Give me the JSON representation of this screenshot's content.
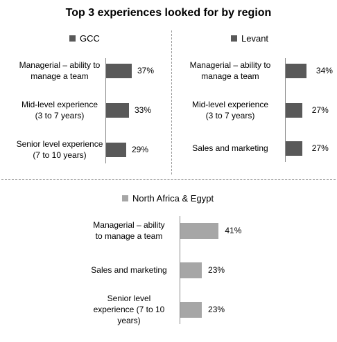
{
  "title": "Top 3 experiences looked for by region",
  "chart_data": [
    {
      "type": "bar",
      "orientation": "horizontal",
      "series": [
        {
          "name": "GCC",
          "color": "#595959"
        }
      ],
      "categories": [
        "Managerial – ability to manage a team",
        "Mid-level experience (3 to 7 years)",
        "Senior level experience (7 to 10 years)"
      ],
      "category_lines": [
        [
          "Managerial – ability to",
          "manage a team"
        ],
        [
          "Mid-level experience",
          "(3 to 7 years)"
        ],
        [
          "Senior level experience",
          "(7 to 10 years)"
        ]
      ],
      "values": [
        37,
        33,
        29
      ],
      "value_labels": [
        "37%",
        "33%",
        "29%"
      ],
      "unit": "%",
      "xlim": [
        0,
        100
      ],
      "legend_position": "top"
    },
    {
      "type": "bar",
      "orientation": "horizontal",
      "series": [
        {
          "name": "Levant",
          "color": "#595959"
        }
      ],
      "categories": [
        "Managerial – ability to manage a team",
        "Mid-level experience (3 to 7 years)",
        "Sales and marketing"
      ],
      "category_lines": [
        [
          "Managerial – ability to",
          "manage a team"
        ],
        [
          "Mid-level experience",
          "(3 to 7 years)"
        ],
        [
          "Sales and marketing"
        ]
      ],
      "values": [
        34,
        27,
        27
      ],
      "value_labels": [
        "34%",
        "27%",
        "27%"
      ],
      "unit": "%",
      "xlim": [
        0,
        100
      ],
      "legend_position": "top"
    },
    {
      "type": "bar",
      "orientation": "horizontal",
      "series": [
        {
          "name": "North Africa & Egypt",
          "color": "#a6a6a6"
        }
      ],
      "categories": [
        "Managerial – ability to manage a team",
        "Sales and marketing",
        "Senior level experience (7 to 10 years)"
      ],
      "category_lines": [
        [
          "Managerial – ability",
          "to manage a team"
        ],
        [
          "Sales and marketing"
        ],
        [
          "Senior level",
          "experience (7 to 10",
          "years)"
        ]
      ],
      "values": [
        41,
        23,
        23
      ],
      "value_labels": [
        "41%",
        "23%",
        "23%"
      ],
      "unit": "%",
      "xlim": [
        0,
        100
      ],
      "legend_position": "top"
    }
  ]
}
